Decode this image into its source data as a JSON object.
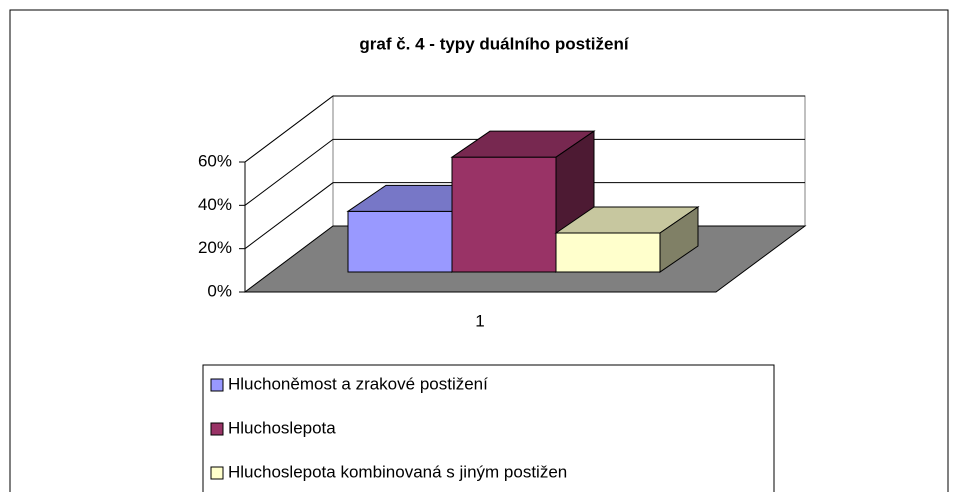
{
  "chart_data": {
    "type": "bar3d",
    "title": "graf č. 4 - typy duálního postižení",
    "categories": [
      "1"
    ],
    "series": [
      {
        "name": "Hluchoněmost a zrakové postižení",
        "color": "#9999ff",
        "values": [
          28
        ]
      },
      {
        "name": "Hluchoslepota",
        "color": "#993366",
        "values": [
          53
        ]
      },
      {
        "name": "Hluchoslepota kombinovaná s jiným postižen",
        "color": "#ffffcc",
        "values": [
          18
        ]
      }
    ],
    "ylim": [
      0,
      60
    ],
    "yticks": [
      {
        "value": 0,
        "label": "0%"
      },
      {
        "value": 20,
        "label": "20%"
      },
      {
        "value": 40,
        "label": "40%"
      },
      {
        "value": 60,
        "label": "60%"
      }
    ],
    "grid": true,
    "legend": "bottom"
  }
}
